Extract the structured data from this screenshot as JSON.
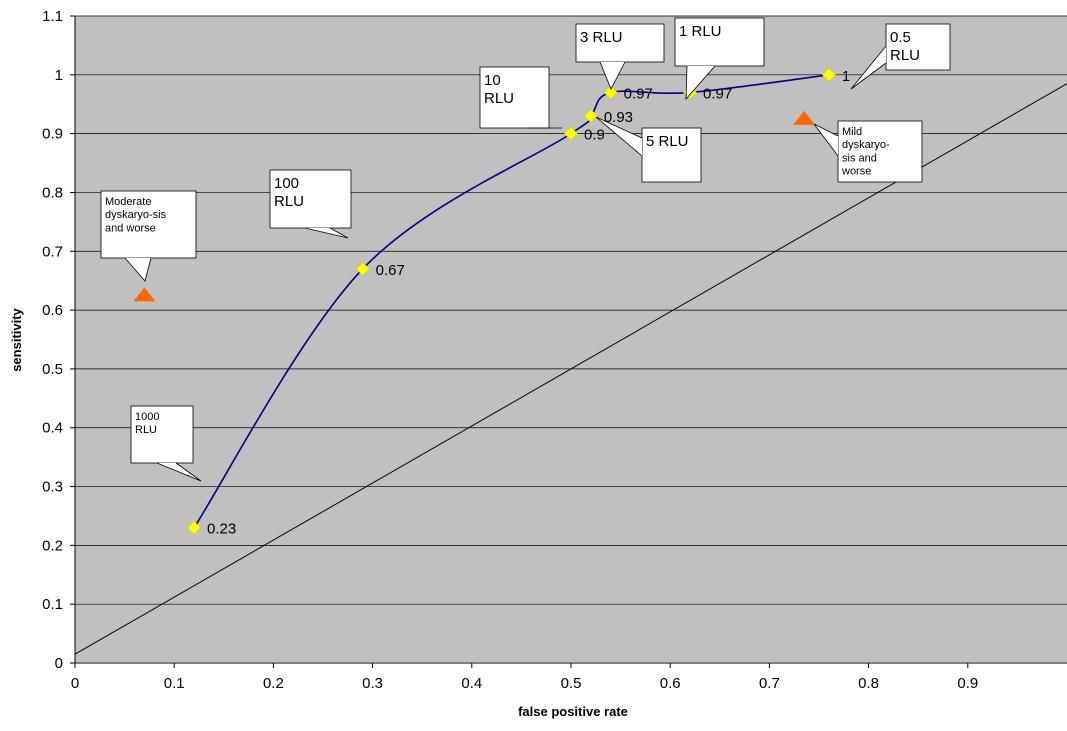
{
  "chart_data": {
    "type": "scatter",
    "xlabel": "false positive rate",
    "ylabel": "sensitivity",
    "xlim": [
      0,
      1
    ],
    "ylim": [
      0,
      1.1
    ],
    "x_ticks": [
      "0",
      "0.1",
      "0.2",
      "0.3",
      "0.4",
      "0.5",
      "0.6",
      "0.7",
      "0.8",
      "0.9"
    ],
    "x_tick_values": [
      0,
      0.1,
      0.2,
      0.3,
      0.4,
      0.5,
      0.6,
      0.7,
      0.8,
      0.9
    ],
    "y_ticks": [
      "0",
      "0.1",
      "0.2",
      "0.3",
      "0.4",
      "0.5",
      "0.6",
      "0.7",
      "0.8",
      "0.9",
      "1",
      "1.1"
    ],
    "y_tick_values": [
      0,
      0.1,
      0.2,
      0.3,
      0.4,
      0.5,
      0.6,
      0.7,
      0.8,
      0.9,
      1,
      1.1
    ],
    "grid": "horizontal",
    "colors": {
      "plot_bg": "#c0c0c0",
      "curve": "#000080",
      "point": "#ffff00",
      "triangle": "#ff6600",
      "reference": "#000000"
    },
    "reference_line": {
      "x": [
        0,
        1
      ],
      "y": [
        0.015,
        0.985
      ]
    },
    "series": [
      {
        "points": [
          {
            "x": 0.12,
            "y": 0.23,
            "label": "0.23"
          },
          {
            "x": 0.29,
            "y": 0.67,
            "label": "0.67"
          },
          {
            "x": 0.5,
            "y": 0.9,
            "label": "0.9"
          },
          {
            "x": 0.52,
            "y": 0.93,
            "label": "0.93"
          },
          {
            "x": 0.54,
            "y": 0.97,
            "label": "0.97"
          },
          {
            "x": 0.62,
            "y": 0.97,
            "label": "0.97"
          },
          {
            "x": 0.76,
            "y": 1.0,
            "label": "1"
          }
        ]
      }
    ],
    "triangles": [
      {
        "x": 0.07,
        "y": 0.625
      },
      {
        "x": 0.735,
        "y": 0.925
      }
    ],
    "callouts": [
      {
        "lines": [
          "1000",
          "RLU"
        ]
      },
      {
        "lines": [
          "100",
          "RLU"
        ]
      },
      {
        "lines": [
          "10",
          "RLU"
        ]
      },
      {
        "lines": [
          "5 RLU"
        ]
      },
      {
        "lines": [
          "3 RLU"
        ]
      },
      {
        "lines": [
          "1 RLU"
        ]
      },
      {
        "lines": [
          "0.5",
          "RLU"
        ]
      },
      {
        "lines": [
          "Moderate",
          "dyskaryo-sis",
          "and worse"
        ]
      },
      {
        "lines": [
          "Mild",
          "dyskaryo-",
          "sis and",
          "worse"
        ]
      }
    ]
  }
}
